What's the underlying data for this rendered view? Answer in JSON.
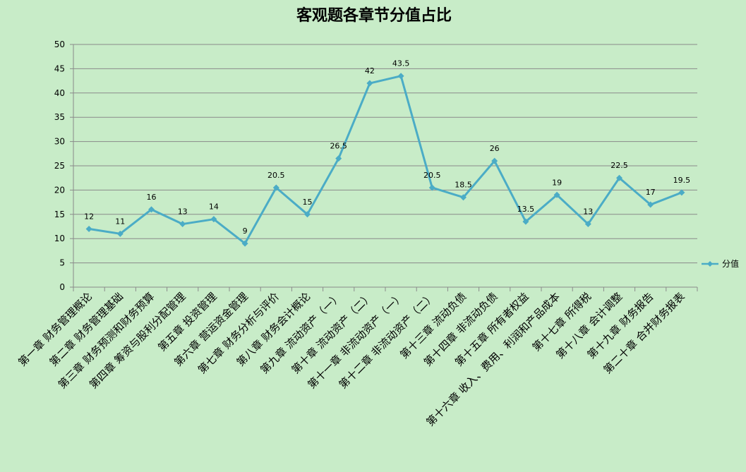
{
  "chart_data": {
    "type": "line",
    "title": "客观题各章节分值占比",
    "categories": [
      "第一章 财务管理概论",
      "第二章 财务管理基础",
      "第三章 财务预测和财务预算",
      "第四章 筹资与股利分配管理",
      "第五章 投资管理",
      "第六章 营运资金管理",
      "第七章 财务分析与评价",
      "第八章 财务会计概论",
      "第九章 流动资产（一）",
      "第十章 流动资产（二）",
      "第十一章 非流动资产（一）",
      "第十二章 非流动资产（二）",
      "第十三章 流动负债",
      "第十四章 非流动负债",
      "第十五章 所有者权益",
      "第十六章 收入、费用、利润和产品成本",
      "第十七章 所得税",
      "第十八章 会计调整",
      "第十九章 财务报告",
      "第二十章 合并财务报表"
    ],
    "series": [
      {
        "name": "分值",
        "values": [
          12,
          11,
          16,
          13,
          14,
          9,
          20.5,
          15,
          26.5,
          42,
          43.5,
          20.5,
          18.5,
          26,
          13.5,
          19,
          13,
          22.5,
          17,
          19.5
        ],
        "labels": [
          "12",
          "11",
          "16",
          "13",
          "14",
          "9",
          "20.5",
          "15",
          "26.5",
          "42",
          "43.5",
          "20.5",
          "18.5",
          "26",
          "13.5",
          "19",
          "13",
          "22.5",
          "17",
          "19.5"
        ]
      }
    ],
    "ylim": [
      0,
      50
    ],
    "yticks": [
      "0",
      "5",
      "10",
      "15",
      "20",
      "25",
      "30",
      "35",
      "40",
      "45",
      "50"
    ],
    "grid": true,
    "legend": "right",
    "colors": {
      "line": "#4bacc6",
      "background": "#c8ecc8",
      "grid": "#8a8a8a",
      "axis": "#8a8a8a"
    }
  }
}
